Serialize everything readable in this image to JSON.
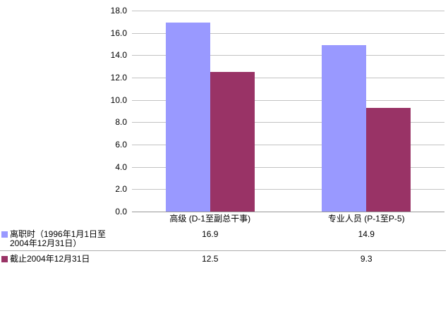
{
  "chart_data": {
    "type": "bar",
    "categories": [
      "高级 (D-1至副总干事)",
      "专业人员 (P-1至P-5)"
    ],
    "series": [
      {
        "name": "离职时（1996年1月1日至2004年12月31日）",
        "values": [
          16.9,
          14.9
        ],
        "color": "#9999FF"
      },
      {
        "name": "截止2004年12月31日",
        "values": [
          12.5,
          9.3
        ],
        "color": "#993366"
      }
    ],
    "ylim": [
      0,
      18
    ],
    "ytick_step": 2,
    "ytick_labels": [
      "18.0",
      "16.0",
      "14.0",
      "12.0",
      "10.0",
      "8.0",
      "6.0",
      "4.0",
      "2.0",
      "0.0"
    ],
    "table_values": [
      [
        "16.9",
        "14.9"
      ],
      [
        "12.5",
        "9.3"
      ]
    ],
    "grid": true,
    "legend_position": "data-table-below-left"
  },
  "colors": {
    "background": "#FFFFFF",
    "gridline": "#C3C3C3",
    "axis_line": "#999999",
    "table_divider": "#ADADAD",
    "text": "#000000"
  }
}
